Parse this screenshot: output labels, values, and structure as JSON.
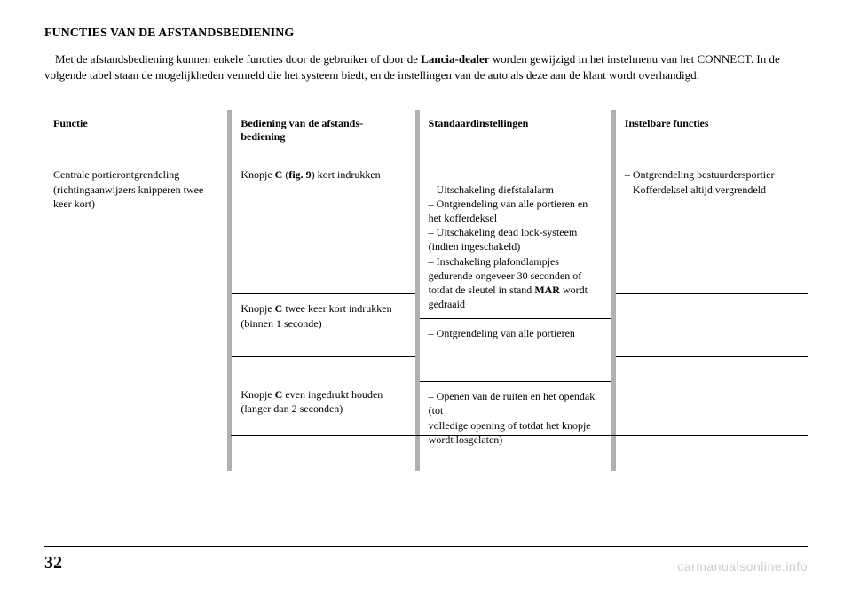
{
  "section_title": "FUNCTIES VAN DE AFSTANDSBEDIENING",
  "intro": {
    "part1": "Met de afstandsbediening kunnen enkele functies door de gebruiker of door de ",
    "bold1": "Lancia-dealer",
    "part2": " worden gewijzigd in het instelmenu van het CONNECT. In de volgende tabel staan de mogelijkheden vermeld die het systeem biedt, en de instellingen van de auto als deze aan de klant wordt overhandigd."
  },
  "headers": {
    "col1": "Functie",
    "col2": "Bediening van de afstands-bediening",
    "col3": "Standaardinstellingen",
    "col4": "Instelbare functies"
  },
  "col1_text": "Centrale portierontgrendeling (richtingaanwijzers knipperen twee keer kort)",
  "rows": [
    {
      "col2_pre": "Knopje ",
      "col2_b1": "C",
      "col2_mid": " (",
      "col2_b2": "fig. 9",
      "col2_post": ") kort indrukken",
      "col3_pre": "– Uitschakeling diefstalalarm\n– Ontgrendeling van alle portieren en het kofferdeksel\n– Uitschakeling dead lock-systeem (indien ingeschakeld)\n– Inschakeling plafondlampjes gedurende ongeveer 30 seconden of totdat de sleutel in stand ",
      "col3_b": "MAR",
      "col3_post": " wordt gedraaid",
      "col4": "– Ontgrendeling bestuurdersportier\n– Kofferdeksel altijd vergrendeld"
    },
    {
      "col2_pre": "Knopje ",
      "col2_b1": "C",
      "col2_post": " twee keer kort indrukken (binnen 1 seconde)",
      "col3": "– Ontgrendeling van alle portieren",
      "col4": ""
    },
    {
      "col2_pre": "Knopje ",
      "col2_b1": "C",
      "col2_post": " even ingedrukt houden (langer dan 2 seconden)",
      "col3": "– Openen van de ruiten en het opendak (tot\nvolledige opening of totdat het knopje wordt losgelaten)",
      "col4": ""
    }
  ],
  "page_number": "32",
  "watermark": "carmanualsonline.info",
  "colors": {
    "separator": "#b0b0b0",
    "watermark": "#cccccc",
    "text": "#000000",
    "background": "#ffffff"
  },
  "font_sizes": {
    "title": 14,
    "body": 13,
    "table": 12,
    "page_number": 20
  }
}
